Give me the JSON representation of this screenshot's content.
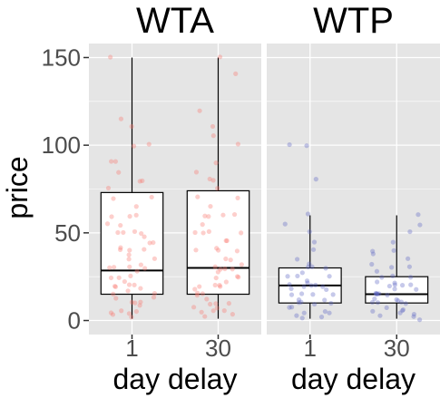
{
  "chart_data": {
    "type": "boxplot",
    "ylabel": "price",
    "ylim": [
      -8,
      158
    ],
    "yticks": [
      "0",
      "50",
      "100",
      "150"
    ],
    "yticks_values": [
      0,
      50,
      100,
      150
    ],
    "grid": true,
    "colors": {
      "panel_bg": "#e5e5e5",
      "grid": "#ffffff",
      "WTA": "#f8766d",
      "WTP": "#5b64c4",
      "box_fill": "#ffffff",
      "box_line": "#000000"
    },
    "panels": [
      {
        "title": "WTA",
        "xlabel": "day delay",
        "categories": [
          "1",
          "30"
        ],
        "boxes": [
          {
            "min": 1,
            "q1": 15,
            "median": 28.5,
            "q3": 73,
            "max": 150
          },
          {
            "min": 1,
            "q1": 15,
            "median": 30,
            "q3": 74,
            "max": 150
          }
        ],
        "points": [
          [
            2,
            3,
            4,
            5,
            5,
            6,
            8,
            10,
            10,
            10,
            12,
            14,
            15,
            15,
            17,
            18,
            20,
            20,
            20,
            20,
            22,
            25,
            25,
            25,
            28,
            30,
            30,
            30,
            30,
            32,
            35,
            35,
            38,
            40,
            40,
            40,
            42,
            45,
            45,
            48,
            50,
            50,
            50,
            50,
            55,
            55,
            60,
            60,
            60,
            65,
            70,
            70,
            75,
            80,
            80,
            85,
            90,
            90,
            100,
            100,
            110,
            115,
            150
          ],
          [
            2,
            3,
            4,
            5,
            5,
            7,
            8,
            10,
            10,
            10,
            12,
            15,
            15,
            15,
            18,
            20,
            20,
            20,
            20,
            22,
            25,
            25,
            25,
            28,
            30,
            30,
            30,
            30,
            32,
            35,
            35,
            40,
            40,
            40,
            42,
            45,
            45,
            50,
            50,
            50,
            50,
            55,
            60,
            60,
            60,
            60,
            65,
            70,
            70,
            75,
            80,
            80,
            85,
            90,
            100,
            105,
            110,
            120,
            140,
            150
          ]
        ]
      },
      {
        "title": "WTP",
        "xlabel": "day delay",
        "categories": [
          "1",
          "30"
        ],
        "boxes": [
          {
            "min": 1,
            "q1": 10,
            "median": 20,
            "q3": 30,
            "max": 60
          },
          {
            "min": 1,
            "q1": 10,
            "median": 15,
            "q3": 25,
            "max": 60
          }
        ],
        "points": [
          [
            1,
            2,
            3,
            5,
            5,
            5,
            7,
            8,
            10,
            10,
            10,
            10,
            12,
            12,
            15,
            15,
            15,
            15,
            18,
            18,
            20,
            20,
            20,
            20,
            20,
            22,
            22,
            25,
            25,
            25,
            28,
            30,
            30,
            30,
            32,
            35,
            40,
            45,
            50,
            55,
            60,
            80,
            100,
            100
          ],
          [
            1,
            2,
            3,
            4,
            5,
            5,
            5,
            6,
            8,
            10,
            10,
            10,
            10,
            12,
            12,
            12,
            15,
            15,
            15,
            15,
            15,
            15,
            18,
            18,
            20,
            20,
            20,
            20,
            22,
            22,
            25,
            25,
            25,
            28,
            30,
            30,
            32,
            35,
            38,
            40,
            40,
            45,
            50,
            55,
            60
          ]
        ]
      }
    ]
  }
}
